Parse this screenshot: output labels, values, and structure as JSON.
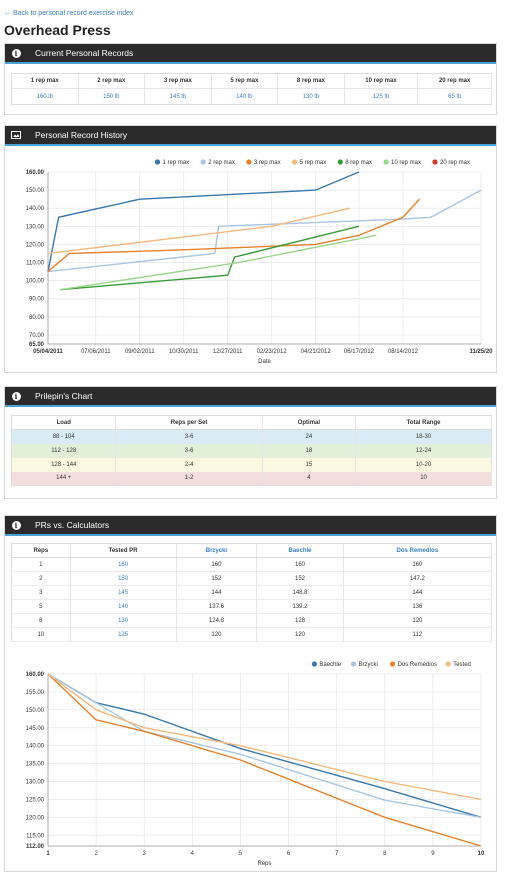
{
  "back_link": "← Back to personal record exercise index",
  "title": "Overhead Press",
  "current_pr": {
    "header": "Current Personal Records",
    "columns": [
      "1 rep max",
      "2 rep max",
      "3 rep max",
      "5 rep max",
      "8 rep max",
      "10 rep max",
      "20 rep max"
    ],
    "values": [
      "160 lb",
      "150 lb",
      "145 lb",
      "140 lb",
      "130 lb",
      "125 lb",
      "65 lb"
    ]
  },
  "history": {
    "header": "Personal Record History"
  },
  "prilepin": {
    "header": "Prilepin's Chart",
    "columns": [
      "Load",
      "Reps per Set",
      "Optimal",
      "Total Range"
    ],
    "rows": [
      [
        "88 - 104",
        "3-6",
        "24",
        "18-30"
      ],
      [
        "112 - 128",
        "3-6",
        "18",
        "12-24"
      ],
      [
        "128 - 144",
        "2-4",
        "15",
        "10-20"
      ],
      [
        "144 +",
        "1-2",
        "4",
        "10"
      ]
    ]
  },
  "calculators": {
    "header": "PRs vs. Calculators",
    "columns": [
      "Reps",
      "Tested PR",
      "Brzycki",
      "Baechle",
      "Dos Remedios"
    ],
    "rows": [
      [
        "1",
        "160",
        "160",
        "160",
        "160"
      ],
      [
        "2",
        "150",
        "152",
        "152",
        "147.2"
      ],
      [
        "3",
        "145",
        "144",
        "148.8",
        "144"
      ],
      [
        "5",
        "140",
        "137.6",
        "139.2",
        "136"
      ],
      [
        "8",
        "130",
        "124.8",
        "128",
        "120"
      ],
      [
        "10",
        "125",
        "120",
        "120",
        "112"
      ]
    ]
  },
  "chart_data": [
    {
      "type": "line",
      "xlabel": "Date",
      "ylim": [
        65,
        160
      ],
      "y_ticks": [
        "65.00",
        "70.00",
        "80.00",
        "90.00",
        "100.00",
        "110.00",
        "120.00",
        "130.00",
        "140.00",
        "150.00",
        "160.00"
      ],
      "x_ticks": [
        "05/04/2011",
        "07/06/2011",
        "09/02/2011",
        "10/30/2011",
        "12/27/2011",
        "02/23/2012",
        "04/21/2012",
        "06/17/2012",
        "08/14/2012",
        "11/25/20"
      ],
      "legend_position": "top-right",
      "grid": true,
      "series": [
        {
          "name": "1 rep max",
          "color": "#3a77ad",
          "points": [
            [
              "05/04/2011",
              105
            ],
            [
              "05/18/2011",
              135
            ],
            [
              "09/02/2011",
              145
            ],
            [
              "04/21/2012",
              150
            ],
            [
              "06/17/2012",
              160
            ]
          ]
        },
        {
          "name": "2 rep max",
          "color": "#a9c6e2",
          "points": [
            [
              "05/04/2011",
              105
            ],
            [
              "12/10/2011",
              115
            ],
            [
              "12/15/2011",
              130
            ],
            [
              "08/14/2012",
              134
            ],
            [
              "09/20/2012",
              135
            ],
            [
              "11/25/2012",
              150
            ]
          ]
        },
        {
          "name": "3 rep max",
          "color": "#e8802a",
          "points": [
            [
              "05/04/2011",
              105
            ],
            [
              "06/01/2011",
              115
            ],
            [
              "10/30/2011",
              117
            ],
            [
              "04/21/2012",
              120
            ],
            [
              "06/17/2012",
              125
            ],
            [
              "08/14/2012",
              135
            ],
            [
              "09/05/2012",
              145
            ]
          ]
        },
        {
          "name": "5 rep max",
          "color": "#f5b97e",
          "points": [
            [
              "05/04/2011",
              115
            ],
            [
              "02/23/2012",
              130
            ],
            [
              "06/05/2012",
              140
            ]
          ]
        },
        {
          "name": "8 rep max",
          "color": "#3a9a3a",
          "points": [
            [
              "05/20/2011",
              95
            ],
            [
              "12/27/2011",
              103
            ],
            [
              "01/05/2012",
              113
            ],
            [
              "06/17/2012",
              130
            ]
          ]
        },
        {
          "name": "10 rep max",
          "color": "#9ad68c",
          "points": [
            [
              "05/20/2011",
              95
            ],
            [
              "01/10/2012",
              110
            ],
            [
              "07/10/2012",
              125
            ]
          ]
        },
        {
          "name": "20 rep max",
          "color": "#d33a2c",
          "points": []
        }
      ]
    },
    {
      "type": "line",
      "xlabel": "Reps",
      "ylim": [
        112,
        160
      ],
      "y_ticks": [
        "112.00",
        "115.00",
        "120.00",
        "125.00",
        "130.00",
        "135.00",
        "140.00",
        "145.00",
        "150.00",
        "155.00",
        "160.00"
      ],
      "x_ticks": [
        "1",
        "2",
        "3",
        "4",
        "5",
        "6",
        "7",
        "8",
        "9",
        "10"
      ],
      "legend_position": "top-right",
      "grid": true,
      "series": [
        {
          "name": "Baechle",
          "color": "#3a77ad",
          "x": [
            1,
            2,
            3,
            5,
            8,
            10
          ],
          "values": [
            160,
            152,
            148.8,
            139.2,
            128,
            120
          ]
        },
        {
          "name": "Brzycki",
          "color": "#a9c6e2",
          "x": [
            1,
            2,
            3,
            5,
            8,
            10
          ],
          "values": [
            160,
            152,
            144,
            137.6,
            124.8,
            120
          ]
        },
        {
          "name": "Dos Remedios",
          "color": "#e8802a",
          "x": [
            1,
            2,
            3,
            5,
            8,
            10
          ],
          "values": [
            160,
            147.2,
            144,
            136,
            120,
            112
          ]
        },
        {
          "name": "Tested",
          "color": "#f5b97e",
          "x": [
            1,
            2,
            3,
            5,
            8,
            10
          ],
          "values": [
            160,
            150,
            145,
            140,
            130,
            125
          ]
        }
      ]
    }
  ]
}
